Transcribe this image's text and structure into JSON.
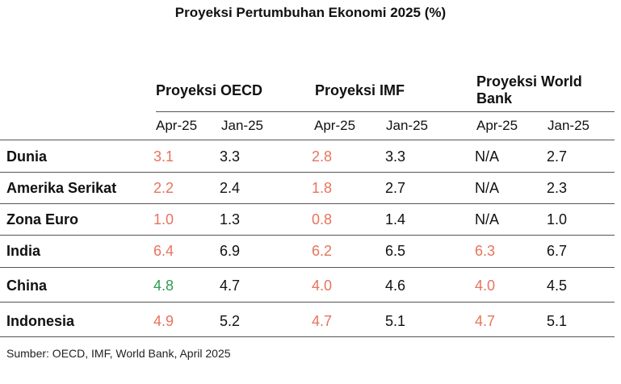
{
  "chart_data": {
    "type": "table",
    "title": "Proyeksi Pertumbuhan Ekonomi 2025 (%)",
    "groups": [
      "Proyeksi OECD",
      "Proyeksi IMF",
      "Proyeksi World Bank"
    ],
    "subcolumns": [
      "Apr-25",
      "Jan-25",
      "Apr-25",
      "Jan-25",
      "Apr-25",
      "Jan-25"
    ],
    "rows": [
      {
        "label": "Dunia",
        "values": [
          "3.1",
          "3.3",
          "2.8",
          "3.3",
          "N/A",
          "2.7"
        ],
        "colors": [
          "#e8735e",
          "#111111",
          "#e8735e",
          "#111111",
          "#111111",
          "#111111"
        ]
      },
      {
        "label": "Amerika Serikat",
        "values": [
          "2.2",
          "2.4",
          "1.8",
          "2.7",
          "N/A",
          "2.3"
        ],
        "colors": [
          "#e8735e",
          "#111111",
          "#e8735e",
          "#111111",
          "#111111",
          "#111111"
        ]
      },
      {
        "label": "Zona Euro",
        "values": [
          "1.0",
          "1.3",
          "0.8",
          "1.4",
          "N/A",
          "1.0"
        ],
        "colors": [
          "#e8735e",
          "#111111",
          "#e8735e",
          "#111111",
          "#111111",
          "#111111"
        ]
      },
      {
        "label": "India",
        "values": [
          "6.4",
          "6.9",
          "6.2",
          "6.5",
          "6.3",
          "6.7"
        ],
        "colors": [
          "#e8735e",
          "#111111",
          "#e8735e",
          "#111111",
          "#e8735e",
          "#111111"
        ]
      },
      {
        "label": "China",
        "values": [
          "4.8",
          "4.7",
          "4.0",
          "4.6",
          "4.0",
          "4.5"
        ],
        "colors": [
          "#2e9e4f",
          "#111111",
          "#e8735e",
          "#111111",
          "#e8735e",
          "#111111"
        ]
      },
      {
        "label": "Indonesia",
        "values": [
          "4.9",
          "5.2",
          "4.7",
          "5.1",
          "4.7",
          "5.1"
        ],
        "colors": [
          "#e8735e",
          "#111111",
          "#e8735e",
          "#111111",
          "#e8735e",
          "#111111"
        ]
      }
    ],
    "source": "Sumber: OECD, IMF, World Bank, April 2025"
  }
}
